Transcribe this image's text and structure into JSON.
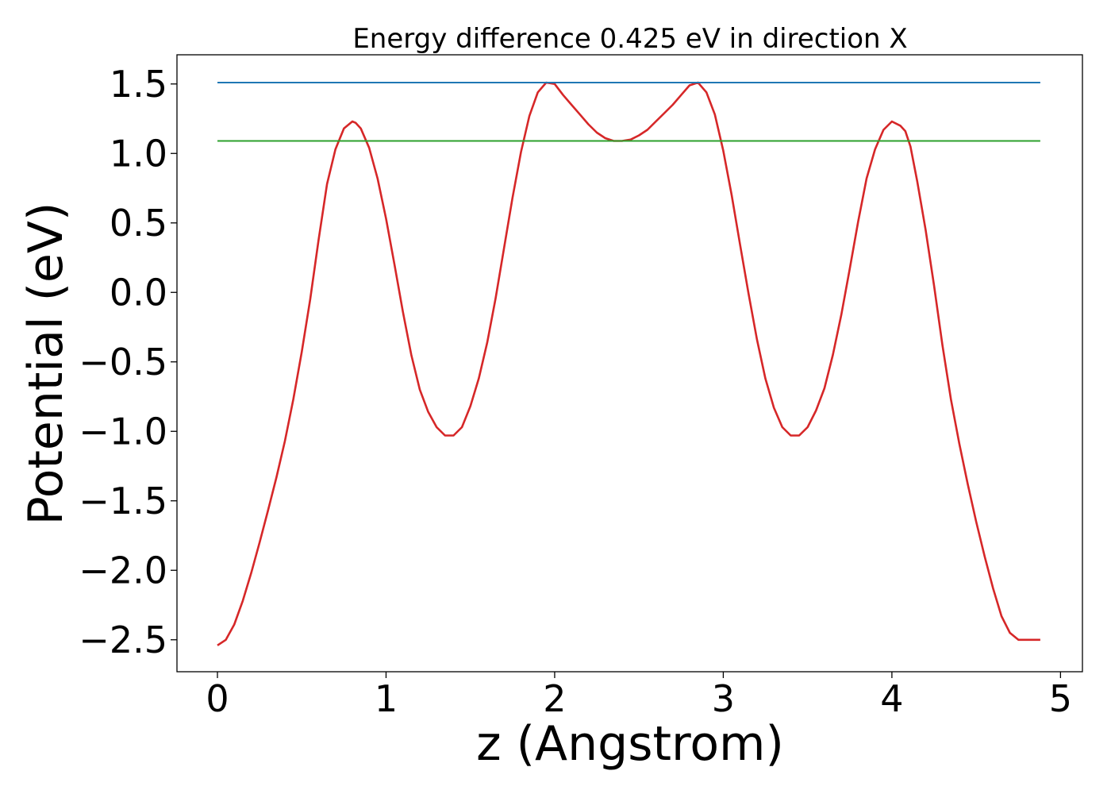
{
  "chart_data": {
    "type": "line",
    "title": "Energy difference 0.425 eV in direction X",
    "xlabel": "z (Angstrom)",
    "ylabel": "Potential (eV)",
    "xlim": [
      -0.24,
      5.13
    ],
    "ylim": [
      -2.73,
      1.71
    ],
    "xticks": [
      0,
      1,
      2,
      3,
      4,
      5
    ],
    "yticks": [
      -2.5,
      -2.0,
      -1.5,
      -1.0,
      -0.5,
      0.0,
      0.5,
      1.0,
      1.5
    ],
    "xtick_labels": [
      "0",
      "1",
      "2",
      "3",
      "4",
      "5"
    ],
    "ytick_labels": [
      "−2.5",
      "−2.0",
      "−1.5",
      "−1.0",
      "−0.5",
      "0.0",
      "0.5",
      "1.0",
      "1.5"
    ],
    "grid": false,
    "series": [
      {
        "color": "#d62728",
        "x": [
          0.0,
          0.05,
          0.1,
          0.15,
          0.2,
          0.25,
          0.3,
          0.35,
          0.4,
          0.45,
          0.5,
          0.55,
          0.6,
          0.65,
          0.7,
          0.75,
          0.8,
          0.82,
          0.85,
          0.9,
          0.95,
          1.0,
          1.05,
          1.1,
          1.15,
          1.2,
          1.25,
          1.3,
          1.35,
          1.4,
          1.45,
          1.5,
          1.55,
          1.6,
          1.65,
          1.7,
          1.75,
          1.8,
          1.85,
          1.9,
          1.95,
          2.0,
          2.05,
          2.1,
          2.15,
          2.2,
          2.25,
          2.3,
          2.35,
          2.4,
          2.45,
          2.5,
          2.55,
          2.6,
          2.65,
          2.7,
          2.75,
          2.8,
          2.85,
          2.9,
          2.95,
          3.0,
          3.05,
          3.1,
          3.15,
          3.2,
          3.25,
          3.3,
          3.35,
          3.4,
          3.45,
          3.5,
          3.55,
          3.6,
          3.65,
          3.7,
          3.75,
          3.8,
          3.85,
          3.9,
          3.95,
          4.0,
          4.05,
          4.08,
          4.11,
          4.15,
          4.2,
          4.25,
          4.3,
          4.35,
          4.4,
          4.45,
          4.5,
          4.55,
          4.6,
          4.65,
          4.7,
          4.75,
          4.8,
          4.85,
          4.88
        ],
        "y": [
          -2.54,
          -2.5,
          -2.39,
          -2.22,
          -2.02,
          -1.8,
          -1.57,
          -1.33,
          -1.07,
          -0.77,
          -0.43,
          -0.05,
          0.38,
          0.78,
          1.03,
          1.18,
          1.23,
          1.22,
          1.18,
          1.04,
          0.82,
          0.53,
          0.2,
          -0.14,
          -0.45,
          -0.7,
          -0.86,
          -0.97,
          -1.03,
          -1.03,
          -0.97,
          -0.82,
          -0.62,
          -0.36,
          -0.04,
          0.32,
          0.68,
          1.01,
          1.27,
          1.44,
          1.51,
          1.5,
          1.42,
          1.35,
          1.28,
          1.21,
          1.15,
          1.11,
          1.09,
          1.09,
          1.1,
          1.13,
          1.17,
          1.23,
          1.29,
          1.35,
          1.42,
          1.49,
          1.51,
          1.44,
          1.28,
          1.02,
          0.7,
          0.34,
          -0.01,
          -0.34,
          -0.62,
          -0.83,
          -0.97,
          -1.03,
          -1.03,
          -0.97,
          -0.85,
          -0.69,
          -0.45,
          -0.16,
          0.17,
          0.51,
          0.82,
          1.03,
          1.17,
          1.23,
          1.2,
          1.16,
          1.05,
          0.8,
          0.45,
          0.05,
          -0.38,
          -0.77,
          -1.09,
          -1.38,
          -1.65,
          -1.9,
          -2.13,
          -2.33,
          -2.45,
          -2.5,
          -2.5,
          -2.5,
          -2.5
        ]
      },
      {
        "color": "#1f77b4",
        "x": [
          0.0,
          4.88
        ],
        "y": [
          1.51,
          1.51
        ]
      },
      {
        "color": "#2ca02c",
        "x": [
          0.0,
          4.88
        ],
        "y": [
          1.09,
          1.09
        ]
      }
    ]
  }
}
